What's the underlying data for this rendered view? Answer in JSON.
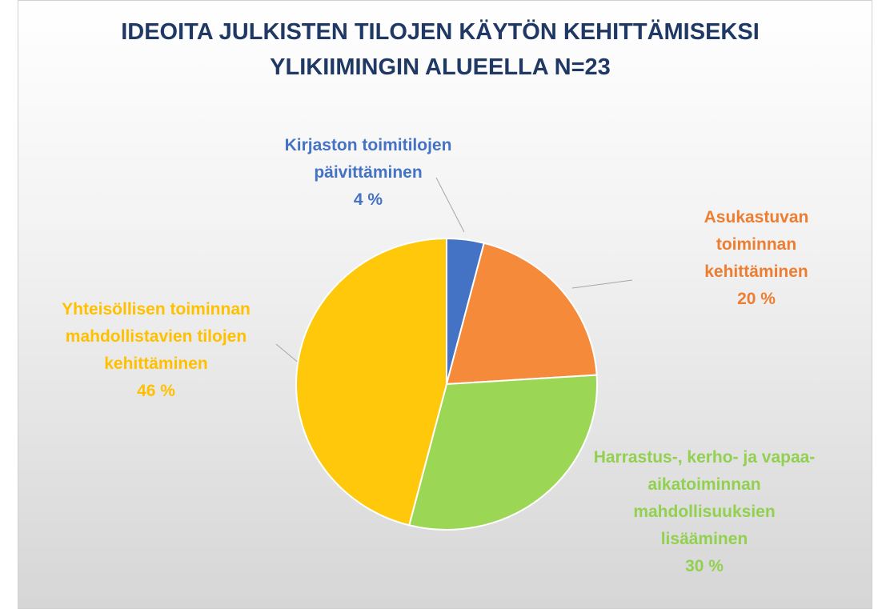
{
  "chart_data": {
    "type": "pie",
    "title": "IDEOITA JULKISTEN TILOJEN KÄYTÖN KEHITTÄMISEKSI YLIKIIMINGIN ALUEELLA N=23",
    "categories": [
      "Kirjaston toimitilojen päivittäminen",
      "Asukastuvan toiminnan kehittäminen",
      "Harrastus-, kerho- ja vapaa-aikatoiminnan mahdollisuuksien lisääminen",
      "Yhteisöllisen toiminnan mahdollistavien tilojen kehittäminen"
    ],
    "values": [
      4,
      20,
      30,
      46
    ],
    "value_labels": [
      "4 %",
      "20 %",
      "30 %",
      "46 %"
    ],
    "colors": [
      "#4472c4",
      "#f58a3b",
      "#9bd655",
      "#ffc80a"
    ],
    "label_colors": [
      "#4472c4",
      "#ed7d31",
      "#92d050",
      "#ffc000"
    ]
  }
}
